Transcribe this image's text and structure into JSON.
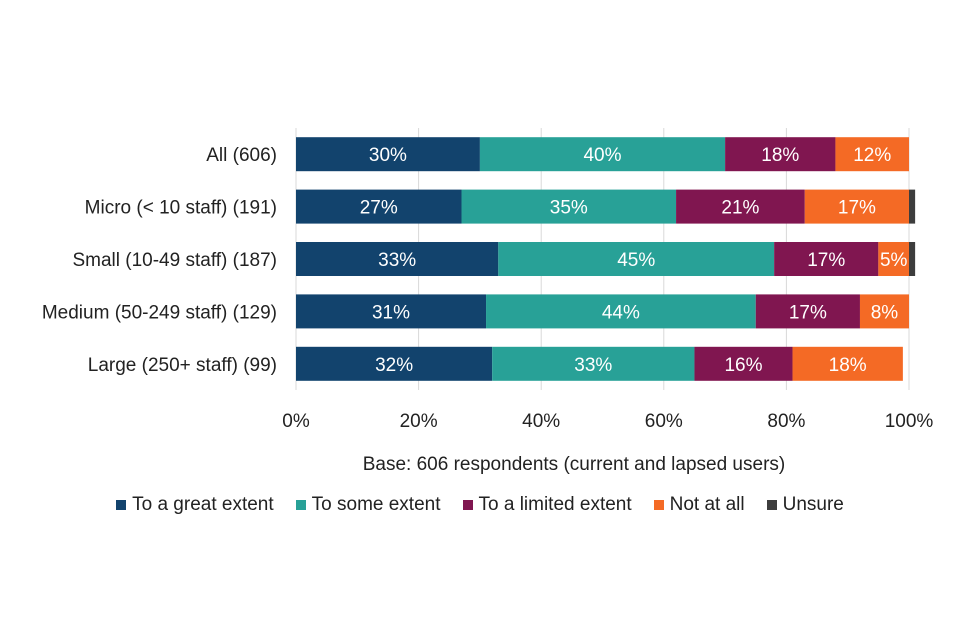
{
  "chart_data": {
    "type": "bar",
    "orientation": "horizontal",
    "stacked": true,
    "categories": [
      "All (606)",
      "Micro (< 10 staff) (191)",
      "Small (10-49 staff) (187)",
      "Medium (50-249 staff) (129)",
      "Large (250+ staff) (99)"
    ],
    "series": [
      {
        "name": "To a great extent",
        "color": "#12436d",
        "values": [
          30,
          27,
          33,
          31,
          32
        ]
      },
      {
        "name": "To some extent",
        "color": "#28a197",
        "values": [
          40,
          35,
          45,
          44,
          33
        ]
      },
      {
        "name": "To a limited extent",
        "color": "#801650",
        "values": [
          18,
          21,
          17,
          17,
          16
        ]
      },
      {
        "name": "Not at all",
        "color": "#f46a25",
        "values": [
          12,
          17,
          5,
          8,
          18
        ]
      },
      {
        "name": "Unsure",
        "color": "#3d3d3d",
        "values": [
          0,
          1,
          1,
          0,
          0
        ]
      }
    ],
    "data_labels": [
      [
        "30%",
        "40%",
        "18%",
        "12%",
        ""
      ],
      [
        "27%",
        "35%",
        "21%",
        "17%",
        ""
      ],
      [
        "33%",
        "45%",
        "17%",
        "5%",
        ""
      ],
      [
        "31%",
        "44%",
        "17%",
        "8%",
        ""
      ],
      [
        "32%",
        "33%",
        "16%",
        "18%",
        ""
      ]
    ],
    "xticks": [
      "0%",
      "20%",
      "40%",
      "60%",
      "80%",
      "100%"
    ],
    "xlim": [
      0,
      100
    ],
    "xlabel": "Base: 606 respondents (current and lapsed users)",
    "grid": true,
    "legend_position": "bottom"
  }
}
